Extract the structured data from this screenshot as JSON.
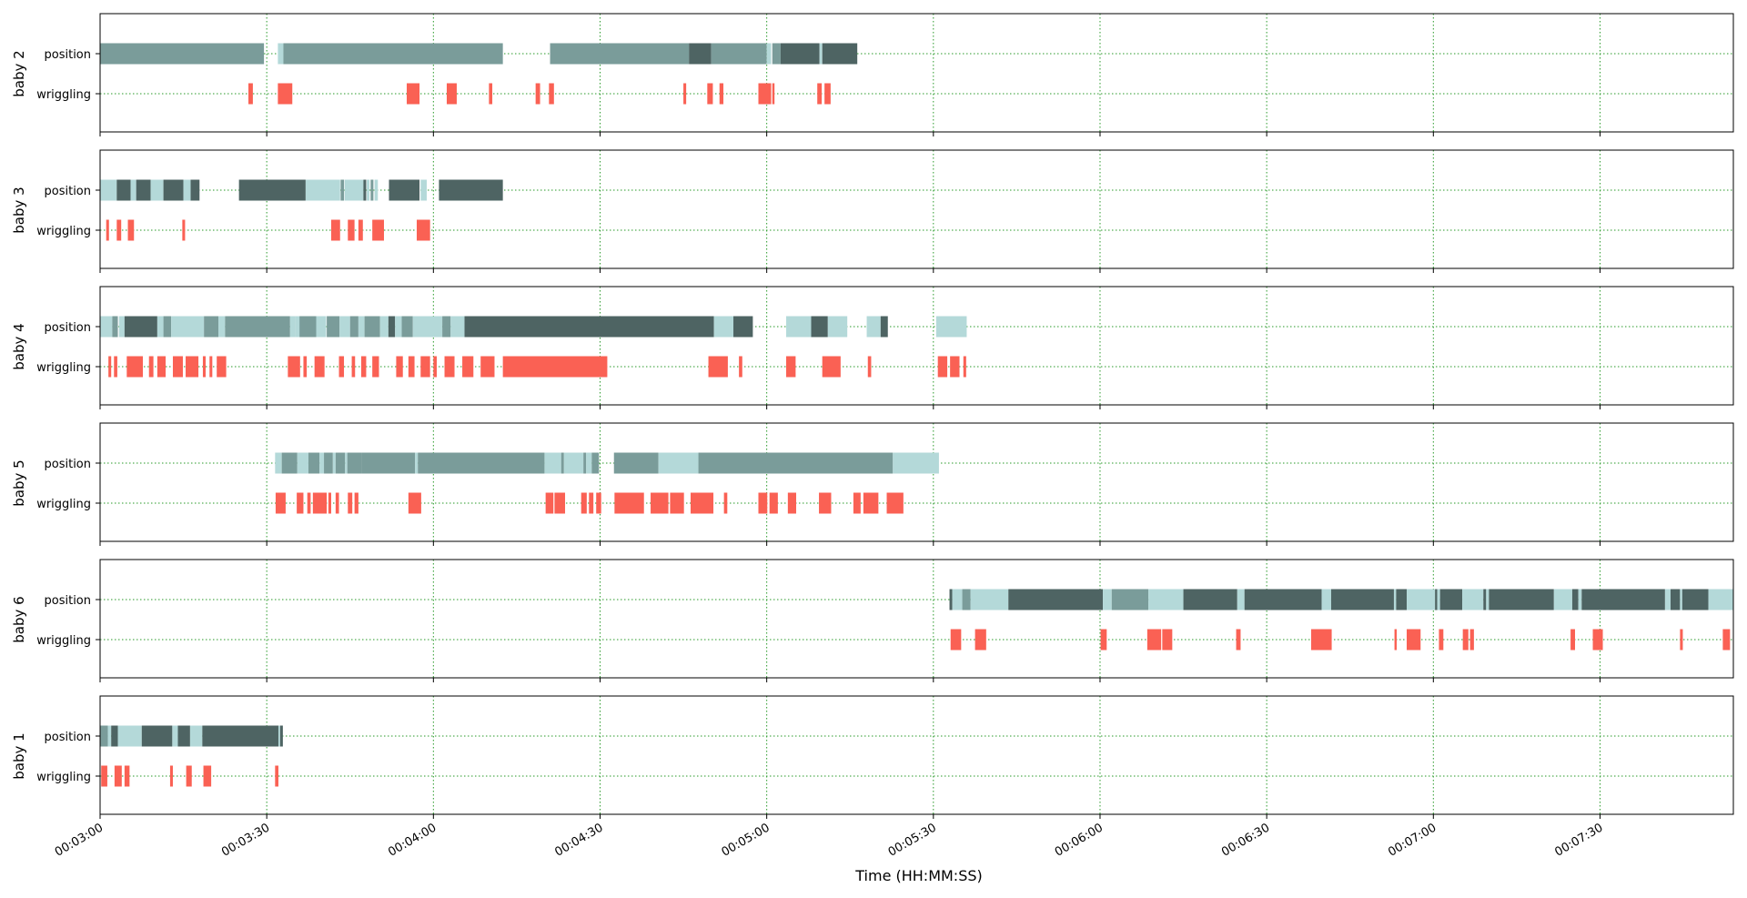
{
  "chart_data": {
    "type": "broken_barh",
    "xlabel": "Time (HH:MM:SS)",
    "xlim": [
      180,
      474
    ],
    "x_ticks": [
      {
        "value": 180,
        "label": "00:03:00"
      },
      {
        "value": 210,
        "label": "00:03:30"
      },
      {
        "value": 240,
        "label": "00:04:00"
      },
      {
        "value": 270,
        "label": "00:04:30"
      },
      {
        "value": 300,
        "label": "00:05:00"
      },
      {
        "value": 330,
        "label": "00:05:30"
      },
      {
        "value": 360,
        "label": "00:06:00"
      },
      {
        "value": 390,
        "label": "00:06:30"
      },
      {
        "value": 420,
        "label": "00:07:00"
      },
      {
        "value": 450,
        "label": "00:07:30"
      }
    ],
    "row_labels": [
      "position",
      "wriggling"
    ],
    "grid": "green dotted",
    "colors": {
      "position_light": "#b4d9d9",
      "position_mid": "#7a9c9a",
      "position_dark": "#4e6463",
      "wriggling": "#fa6154",
      "grid": "#2a9a2a"
    },
    "panels": [
      {
        "name": "baby 2",
        "position": [
          [
            180,
            29.5,
            "mid"
          ],
          [
            212,
            1,
            "light"
          ],
          [
            213,
            39.5,
            "mid"
          ],
          [
            261,
            25,
            "mid"
          ],
          [
            286,
            4,
            "dark"
          ],
          [
            290,
            10,
            "mid"
          ],
          [
            300,
            0.8,
            "light"
          ],
          [
            301,
            1.5,
            "mid"
          ],
          [
            302.5,
            7,
            "dark"
          ],
          [
            309.5,
            0.5,
            "light"
          ],
          [
            310,
            6.3,
            "dark"
          ]
        ],
        "wriggling": [
          [
            206.7,
            0.8
          ],
          [
            212,
            2.6
          ],
          [
            235.2,
            2.3
          ],
          [
            242.4,
            1.8
          ],
          [
            250,
            0.6
          ],
          [
            258.4,
            0.8
          ],
          [
            260.8,
            0.9
          ],
          [
            285,
            0.5
          ],
          [
            289.3,
            1
          ],
          [
            291.5,
            0.7
          ],
          [
            298.5,
            2.3
          ],
          [
            301,
            0.4
          ],
          [
            309.1,
            0.8
          ],
          [
            310.4,
            1.1
          ]
        ]
      },
      {
        "name": "baby 3",
        "position": [
          [
            180,
            3,
            "light"
          ],
          [
            183,
            2.5,
            "dark"
          ],
          [
            185.5,
            1,
            "light"
          ],
          [
            186.5,
            2.6,
            "dark"
          ],
          [
            189.1,
            2.3,
            "light"
          ],
          [
            191.4,
            3.6,
            "dark"
          ],
          [
            195,
            1.3,
            "light"
          ],
          [
            196.3,
            1.6,
            "dark"
          ],
          [
            205,
            12,
            "dark"
          ],
          [
            217,
            6.2,
            "light"
          ],
          [
            223.3,
            0.6,
            "mid"
          ],
          [
            224,
            3.4,
            "light"
          ],
          [
            227.4,
            0.5,
            "dark"
          ],
          [
            228,
            0.5,
            "light"
          ],
          [
            228.7,
            0.5,
            "mid"
          ],
          [
            229.4,
            0.6,
            "light"
          ],
          [
            232,
            5.5,
            "dark"
          ],
          [
            237.7,
            1.1,
            "light"
          ],
          [
            241,
            11.5,
            "dark"
          ]
        ],
        "wriggling": [
          [
            181.1,
            0.5
          ],
          [
            183,
            0.8
          ],
          [
            185,
            1.1
          ],
          [
            194.8,
            0.5
          ],
          [
            221.6,
            1.6
          ],
          [
            224.6,
            1.2
          ],
          [
            226.5,
            0.8
          ],
          [
            229,
            2.1
          ],
          [
            237,
            2.4
          ]
        ]
      },
      {
        "name": "baby 4",
        "position": [
          [
            180,
            2.2,
            "light"
          ],
          [
            182.2,
            1,
            "mid"
          ],
          [
            183.4,
            1,
            "light"
          ],
          [
            184.4,
            5.9,
            "dark"
          ],
          [
            190.3,
            1.1,
            "light"
          ],
          [
            191.4,
            1.4,
            "mid"
          ],
          [
            192.8,
            5.9,
            "light"
          ],
          [
            198.7,
            2.6,
            "mid"
          ],
          [
            201.3,
            1.2,
            "light"
          ],
          [
            202.5,
            11.7,
            "mid"
          ],
          [
            214.2,
            1,
            "light"
          ],
          [
            215.2,
            1,
            "light"
          ],
          [
            215.9,
            3,
            "mid"
          ],
          [
            218.9,
            1.8,
            "light"
          ],
          [
            220.8,
            2.3,
            "mid"
          ],
          [
            223.1,
            1.9,
            "light"
          ],
          [
            225,
            1.5,
            "mid"
          ],
          [
            226.5,
            1.1,
            "light"
          ],
          [
            227.6,
            2.8,
            "mid"
          ],
          [
            230.4,
            1.5,
            "light"
          ],
          [
            231.9,
            1.2,
            "dark"
          ],
          [
            233.1,
            1.2,
            "light"
          ],
          [
            234.3,
            2,
            "mid"
          ],
          [
            236.3,
            5.3,
            "light"
          ],
          [
            241.6,
            1.5,
            "mid"
          ],
          [
            243.1,
            2.5,
            "light"
          ],
          [
            245.6,
            44.9,
            "dark"
          ],
          [
            290.5,
            3.5,
            "light"
          ],
          [
            294,
            3.5,
            "dark"
          ],
          [
            303.5,
            4.5,
            "light"
          ],
          [
            308,
            3,
            "dark"
          ],
          [
            311,
            3.5,
            "light"
          ],
          [
            318,
            2.5,
            "light"
          ],
          [
            320.5,
            1.3,
            "dark"
          ],
          [
            330.5,
            5.5,
            "light"
          ]
        ],
        "wriggling": [
          [
            181.5,
            0.5
          ],
          [
            182.5,
            0.6
          ],
          [
            184.8,
            2.9
          ],
          [
            188.8,
            0.8
          ],
          [
            190.3,
            1.5
          ],
          [
            193.1,
            1.8
          ],
          [
            195.4,
            2.3
          ],
          [
            198.5,
            0.5
          ],
          [
            199.7,
            0.5
          ],
          [
            201,
            1.7
          ],
          [
            213.8,
            2.2
          ],
          [
            216.6,
            0.6
          ],
          [
            218.6,
            1.8
          ],
          [
            223,
            0.9
          ],
          [
            225.3,
            0.6
          ],
          [
            227,
            0.9
          ],
          [
            229,
            1.2
          ],
          [
            233.3,
            1.2
          ],
          [
            235.5,
            1.1
          ],
          [
            237.7,
            1.7
          ],
          [
            240,
            0.6
          ],
          [
            242,
            1.8
          ],
          [
            245.2,
            2
          ],
          [
            248.5,
            2.5
          ],
          [
            252.5,
            18.8
          ],
          [
            289.5,
            3.5
          ],
          [
            295,
            0.6
          ],
          [
            303.5,
            1.7
          ],
          [
            310,
            3.3
          ],
          [
            318.2,
            0.6
          ],
          [
            330.8,
            1.7
          ],
          [
            333,
            1.7
          ],
          [
            335.4,
            0.5
          ]
        ]
      },
      {
        "name": "baby 5",
        "position": [
          [
            211.5,
            1.2,
            "light"
          ],
          [
            212.7,
            2.8,
            "mid"
          ],
          [
            215.5,
            2,
            "light"
          ],
          [
            217.5,
            2,
            "mid"
          ],
          [
            219.5,
            0.8,
            "light"
          ],
          [
            220.3,
            1.6,
            "mid"
          ],
          [
            221.9,
            0.5,
            "light"
          ],
          [
            222.4,
            1.7,
            "mid"
          ],
          [
            224.1,
            0.4,
            "light"
          ],
          [
            224.5,
            2.6,
            "mid"
          ],
          [
            227.1,
            9.6,
            "mid"
          ],
          [
            236.7,
            0.5,
            "light"
          ],
          [
            237.2,
            22.8,
            "mid"
          ],
          [
            260,
            3,
            "light"
          ],
          [
            263,
            0.5,
            "mid"
          ],
          [
            263.5,
            3.5,
            "light"
          ],
          [
            267,
            0.5,
            "mid"
          ],
          [
            267.5,
            1,
            "light"
          ],
          [
            268.5,
            1.3,
            "mid"
          ],
          [
            272.5,
            8,
            "mid"
          ],
          [
            280.5,
            7.2,
            "light"
          ],
          [
            287.7,
            35,
            "mid"
          ],
          [
            322.7,
            8.3,
            "light"
          ]
        ],
        "wriggling": [
          [
            211.6,
            1.8
          ],
          [
            215.4,
            1.2
          ],
          [
            217.3,
            0.6
          ],
          [
            218.3,
            2.5
          ],
          [
            221.1,
            0.5
          ],
          [
            222.4,
            0.6
          ],
          [
            224.6,
            0.8
          ],
          [
            225.8,
            0.7
          ],
          [
            235.5,
            2.3
          ],
          [
            260.2,
            1.4
          ],
          [
            261.8,
            1.9
          ],
          [
            266.6,
            1
          ],
          [
            268,
            0.8
          ],
          [
            269.3,
            0.9
          ],
          [
            272.6,
            5.3
          ],
          [
            279.1,
            3.2
          ],
          [
            282.6,
            2.5
          ],
          [
            286.3,
            4.1
          ],
          [
            292.3,
            0.6
          ],
          [
            298.5,
            1.6
          ],
          [
            300.5,
            1.5
          ],
          [
            303.8,
            1.5
          ],
          [
            309.4,
            2.2
          ],
          [
            315.6,
            1.3
          ],
          [
            317.4,
            2.7
          ],
          [
            321.6,
            3
          ]
        ]
      },
      {
        "name": "baby 6",
        "position": [
          [
            332.9,
            0.5,
            "dark"
          ],
          [
            333.4,
            1.8,
            "light"
          ],
          [
            335.2,
            1.5,
            "mid"
          ],
          [
            336.7,
            6.8,
            "light"
          ],
          [
            343.5,
            17,
            "dark"
          ],
          [
            360.5,
            1.6,
            "light"
          ],
          [
            362.1,
            6.6,
            "mid"
          ],
          [
            368.7,
            6.3,
            "light"
          ],
          [
            375,
            9.7,
            "dark"
          ],
          [
            384.7,
            1.3,
            "light"
          ],
          [
            386,
            13.9,
            "dark"
          ],
          [
            399.9,
            1.7,
            "light"
          ],
          [
            401.6,
            11.3,
            "dark"
          ],
          [
            412.9,
            0.4,
            "light"
          ],
          [
            413.3,
            1.9,
            "dark"
          ],
          [
            415.2,
            5.1,
            "light"
          ],
          [
            420.3,
            0.4,
            "dark"
          ],
          [
            420.7,
            0.5,
            "light"
          ],
          [
            421.2,
            4,
            "dark"
          ],
          [
            425.2,
            3.8,
            "light"
          ],
          [
            429,
            0.5,
            "dark"
          ],
          [
            429.5,
            0.5,
            "light"
          ],
          [
            430,
            11.7,
            "dark"
          ],
          [
            441.7,
            3.3,
            "light"
          ],
          [
            445,
            1.1,
            "dark"
          ],
          [
            446.1,
            0.6,
            "light"
          ],
          [
            446.7,
            15,
            "dark"
          ],
          [
            461.7,
            1,
            "light"
          ],
          [
            462.7,
            1.7,
            "dark"
          ],
          [
            464.4,
            0.4,
            "light"
          ],
          [
            464.8,
            4.7,
            "dark"
          ],
          [
            469.5,
            4.5,
            "light"
          ]
        ],
        "wriggling": [
          [
            333.1,
            1.9
          ],
          [
            337.5,
            2
          ],
          [
            360.1,
            1.1
          ],
          [
            368.5,
            2.5
          ],
          [
            371.2,
            1.8
          ],
          [
            384.5,
            0.8
          ],
          [
            398,
            3.7
          ],
          [
            413,
            0.4
          ],
          [
            415.2,
            2.5
          ],
          [
            421,
            0.8
          ],
          [
            425.3,
            1
          ],
          [
            426.6,
            0.7
          ],
          [
            444.7,
            0.8
          ],
          [
            448.7,
            1.8
          ],
          [
            464.4,
            0.5
          ],
          [
            472.1,
            1.3
          ]
        ]
      },
      {
        "name": "baby 1",
        "position": [
          [
            180,
            1.4,
            "mid"
          ],
          [
            181.4,
            0.6,
            "light"
          ],
          [
            182,
            1.2,
            "dark"
          ],
          [
            183.2,
            4.3,
            "light"
          ],
          [
            187.5,
            5.5,
            "dark"
          ],
          [
            193,
            1,
            "light"
          ],
          [
            194,
            2.2,
            "dark"
          ],
          [
            196.2,
            2.2,
            "light"
          ],
          [
            198.4,
            13.7,
            "dark"
          ],
          [
            212.1,
            0.3,
            "light"
          ],
          [
            212.4,
            0.5,
            "dark"
          ]
        ],
        "wriggling": [
          [
            180.2,
            1.1
          ],
          [
            182.6,
            1.3
          ],
          [
            184.4,
            0.9
          ],
          [
            192.6,
            0.5
          ],
          [
            195.5,
            1
          ],
          [
            198.6,
            1.4
          ],
          [
            211.5,
            0.6
          ]
        ]
      }
    ]
  }
}
